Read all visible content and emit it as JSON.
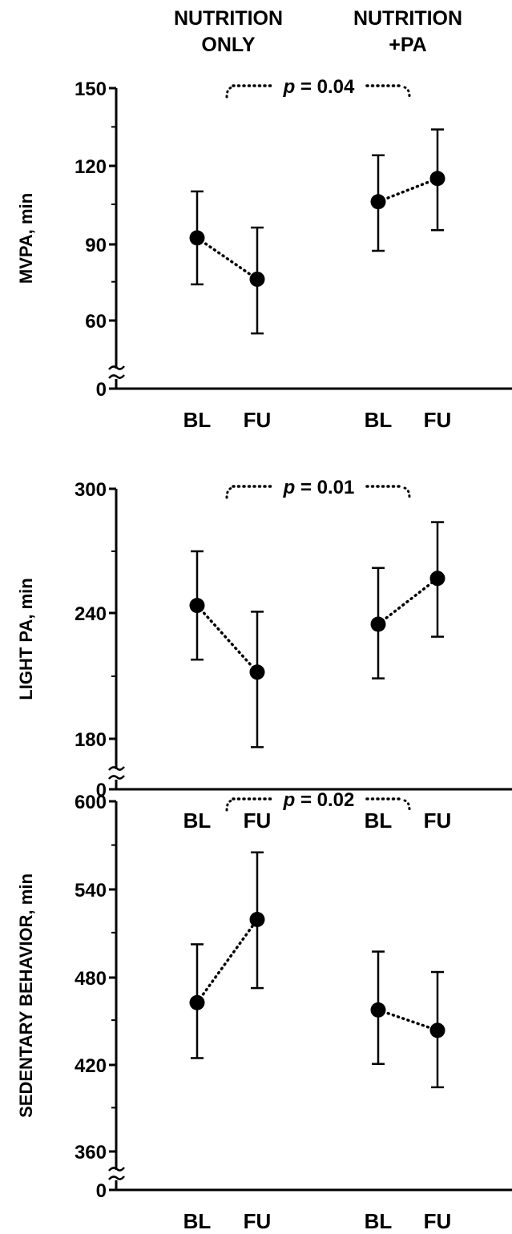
{
  "headers": {
    "group1": [
      "NUTRITION",
      "ONLY"
    ],
    "group2": [
      "NUTRITION",
      "+PA"
    ]
  },
  "chart_data": [
    {
      "type": "scatter",
      "ylabel": "MVPA, min",
      "axis_break": true,
      "yticks": [
        0,
        60,
        90,
        120,
        150
      ],
      "ylim": [
        60,
        150
      ],
      "categories": [
        "BL",
        "FU",
        "BL",
        "FU"
      ],
      "groups": [
        "NUTRITION ONLY",
        "NUTRITION +PA"
      ],
      "p_value": {
        "prefix": "p",
        "text": " = 0.04"
      },
      "points": [
        {
          "group": "NUTRITION ONLY",
          "x": "BL",
          "y": 92,
          "err_low": 74,
          "err_high": 110
        },
        {
          "group": "NUTRITION ONLY",
          "x": "FU",
          "y": 76,
          "err_low": 55,
          "err_high": 96
        },
        {
          "group": "NUTRITION +PA",
          "x": "BL",
          "y": 106,
          "err_low": 87,
          "err_high": 124
        },
        {
          "group": "NUTRITION +PA",
          "x": "FU",
          "y": 115,
          "err_low": 95,
          "err_high": 134
        }
      ]
    },
    {
      "type": "scatter",
      "ylabel": "LIGHT PA, min",
      "axis_break": true,
      "yticks": [
        0,
        180,
        240,
        300
      ],
      "ylim": [
        180,
        300
      ],
      "categories": [
        "BL",
        "FU",
        "BL",
        "FU"
      ],
      "groups": [
        "NUTRITION ONLY",
        "NUTRITION +PA"
      ],
      "p_value": {
        "prefix": "p",
        "text": " = 0.01"
      },
      "points": [
        {
          "group": "NUTRITION ONLY",
          "x": "BL",
          "y": 244,
          "err_low": 218,
          "err_high": 270
        },
        {
          "group": "NUTRITION ONLY",
          "x": "FU",
          "y": 212,
          "err_low": 176,
          "err_high": 241
        },
        {
          "group": "NUTRITION +PA",
          "x": "BL",
          "y": 235,
          "err_low": 209,
          "err_high": 262
        },
        {
          "group": "NUTRITION +PA",
          "x": "FU",
          "y": 257,
          "err_low": 229,
          "err_high": 284
        }
      ]
    },
    {
      "type": "scatter",
      "ylabel": "SEDENTARY BEHAVIOR, min",
      "axis_break": true,
      "yticks": [
        0,
        360,
        420,
        480,
        540,
        600
      ],
      "ylim": [
        360,
        600
      ],
      "categories": [
        "BL",
        "FU",
        "BL",
        "FU"
      ],
      "groups": [
        "NUTRITION ONLY",
        "NUTRITION +PA"
      ],
      "p_value": {
        "prefix": "p",
        "text": " = 0.02"
      },
      "points": [
        {
          "group": "NUTRITION ONLY",
          "x": "BL",
          "y": 462,
          "err_low": 424,
          "err_high": 502
        },
        {
          "group": "NUTRITION ONLY",
          "x": "FU",
          "y": 519,
          "err_low": 472,
          "err_high": 565
        },
        {
          "group": "NUTRITION +PA",
          "x": "BL",
          "y": 457,
          "err_low": 420,
          "err_high": 497
        },
        {
          "group": "NUTRITION +PA",
          "x": "FU",
          "y": 443,
          "err_low": 404,
          "err_high": 483
        }
      ]
    }
  ]
}
